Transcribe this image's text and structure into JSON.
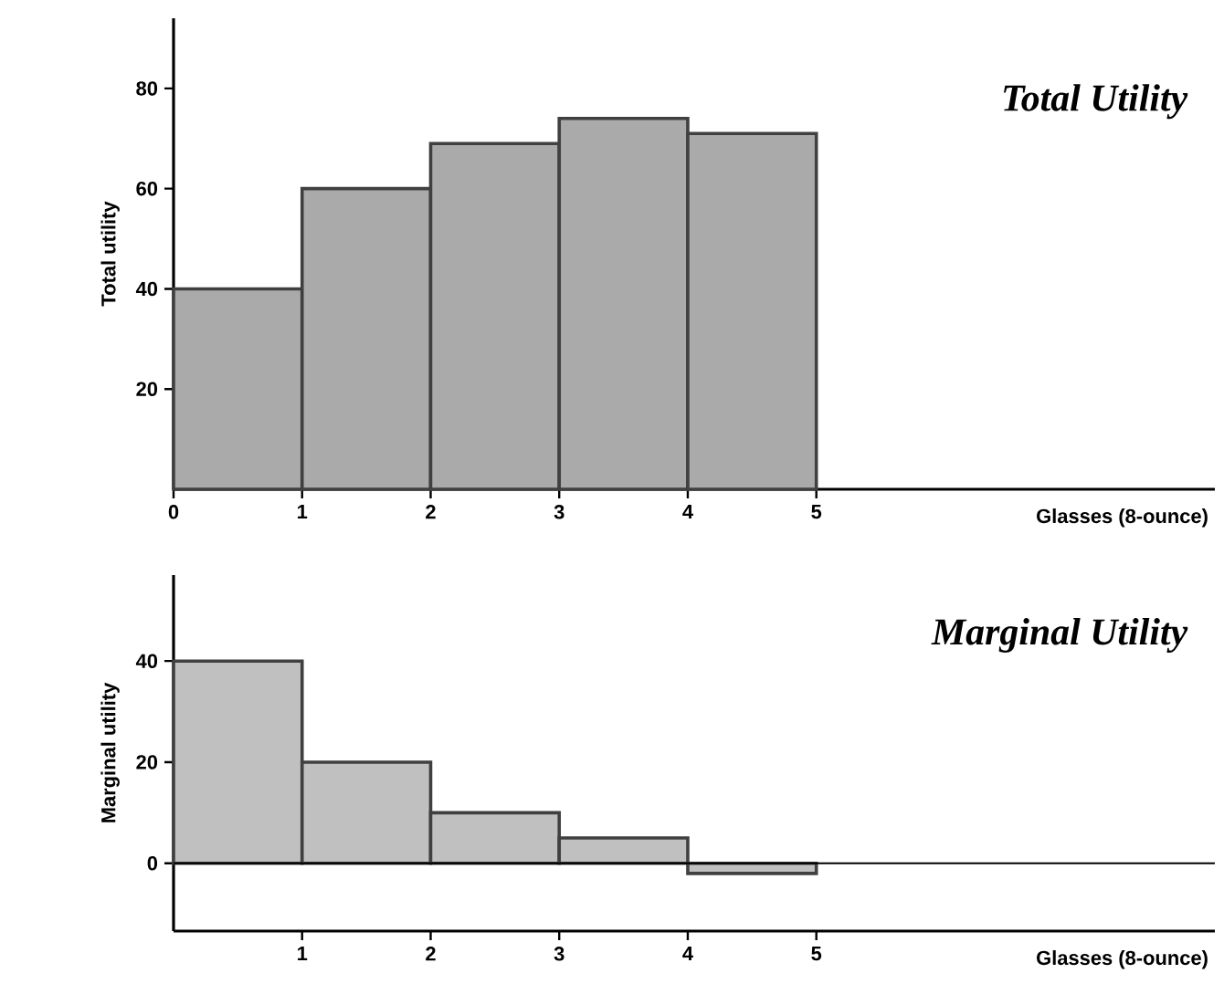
{
  "chart_data": [
    {
      "type": "histogram",
      "title": "Total Utility",
      "xlabel": "Glasses (8-ounce)",
      "ylabel": "Total utility",
      "bins": [
        0,
        1,
        2,
        3,
        4,
        5
      ],
      "values": [
        40,
        60,
        69,
        74,
        71
      ],
      "color": "#aaaaaa",
      "xlim": [
        0,
        8.1
      ],
      "ylim": [
        0,
        94
      ],
      "xticks": [
        0,
        1,
        2,
        3,
        4,
        5
      ],
      "yticks": [
        20,
        40,
        60,
        80
      ]
    },
    {
      "type": "histogram",
      "title": "Marginal Utility",
      "xlabel": "Glasses (8-ounce)",
      "ylabel": "Marginal utility",
      "bins": [
        0,
        1,
        2,
        3,
        4,
        5
      ],
      "values": [
        40,
        20,
        10,
        5,
        -2
      ],
      "color": "#c0c0c0",
      "xlim": [
        0,
        8.1
      ],
      "ylim": [
        -13.4,
        57
      ],
      "xticks": [
        1,
        2,
        3,
        4,
        5
      ],
      "yticks": [
        0,
        20,
        40
      ],
      "ref_lines": [
        {
          "axis": "y",
          "value": 0
        }
      ]
    }
  ]
}
